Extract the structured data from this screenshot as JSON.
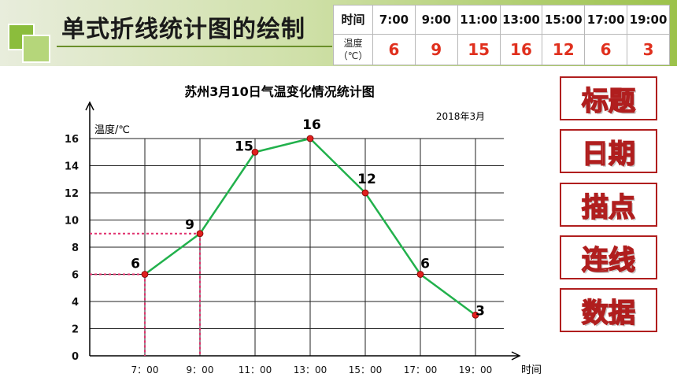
{
  "slide": {
    "title": "单式折线统计图的绘制",
    "accent_color": "#8bbd3c"
  },
  "table": {
    "time_header": "时间",
    "temp_header_line1": "温度",
    "temp_header_line2": "（℃）",
    "times": [
      "7:00",
      "9:00",
      "11:00",
      "13:00",
      "15:00",
      "17:00",
      "19:00"
    ],
    "temps": [
      "6",
      "9",
      "15",
      "16",
      "12",
      "6",
      "3"
    ]
  },
  "chart_data": {
    "type": "line",
    "title": "苏州3月10日气温变化情况统计图",
    "subtitle": "2018年3月",
    "xlabel": "时间",
    "ylabel": "温度/℃",
    "categories": [
      "7：00",
      "9：00",
      "11：00",
      "13：00",
      "15：00",
      "17：00",
      "19：00"
    ],
    "values": [
      6,
      9,
      15,
      16,
      12,
      6,
      3
    ],
    "data_labels": [
      "6",
      "9",
      "15",
      "16",
      "12",
      "6",
      "3"
    ],
    "yticks": [
      "0",
      "2",
      "4",
      "6",
      "8",
      "10",
      "12",
      "14",
      "16"
    ],
    "ylim": [
      0,
      16
    ],
    "grid": true,
    "line_color": "#22b14c",
    "marker_color": "#e0201e",
    "guide_color": "#e0306e",
    "guide_points": [
      "7：00",
      "9：00"
    ]
  },
  "steps": {
    "items": [
      "标题",
      "日期",
      "描点",
      "连线",
      "数据"
    ],
    "border_color": "#b01e1e"
  }
}
